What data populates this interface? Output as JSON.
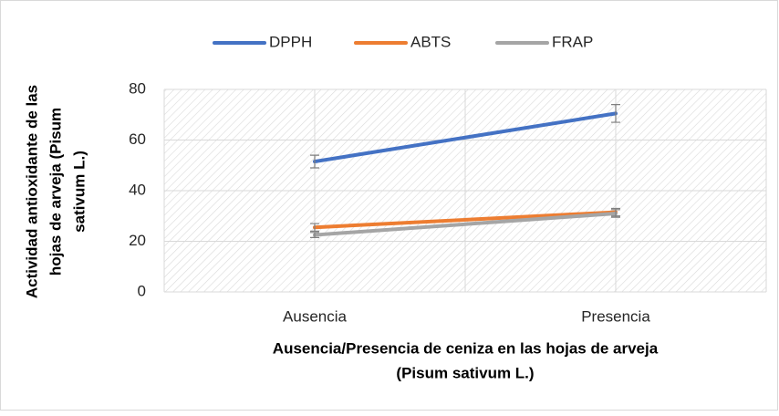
{
  "chart_data": {
    "type": "line",
    "categories": [
      "Ausencia",
      "Presencia"
    ],
    "series": [
      {
        "name": "DPPH",
        "color": "#4472c4",
        "values": [
          51.5,
          70.5
        ],
        "errors": [
          2.5,
          3.5
        ]
      },
      {
        "name": "ABTS",
        "color": "#ed7d31",
        "values": [
          25.5,
          31.5
        ],
        "errors": [
          1.5,
          1.5
        ]
      },
      {
        "name": "FRAP",
        "color": "#a5a5a5",
        "values": [
          22.5,
          31
        ],
        "errors": [
          1,
          1.5
        ]
      }
    ],
    "xlabel": [
      "Ausencia/Presencia de ceniza en las hojas de arveja",
      "(Pisum sativum L.)"
    ],
    "ylabel": [
      "Actividad antioxidante de las",
      "hojas de arveja (Pisum",
      "sativum L.)"
    ],
    "ylim": [
      0,
      80
    ],
    "yticks": [
      0,
      20,
      40,
      60,
      80
    ],
    "grid": true,
    "legend": "top"
  }
}
